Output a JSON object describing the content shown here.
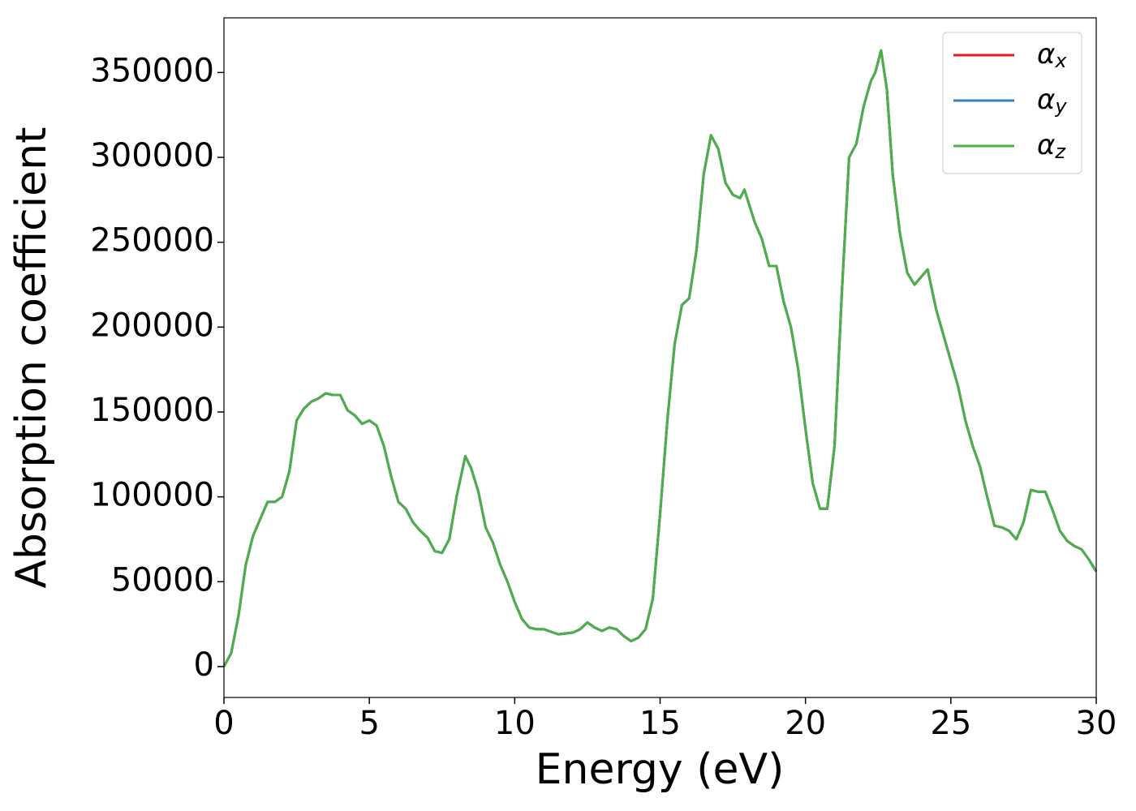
{
  "chart_data": {
    "type": "line",
    "xlabel": "Energy (eV)",
    "ylabel": "Absorption coefficient",
    "x": [
      0,
      0.25,
      0.5,
      0.75,
      1.0,
      1.25,
      1.5,
      1.75,
      2.0,
      2.25,
      2.5,
      2.75,
      3.0,
      3.25,
      3.5,
      3.75,
      4.0,
      4.25,
      4.5,
      4.75,
      5.0,
      5.25,
      5.5,
      5.75,
      6.0,
      6.25,
      6.5,
      6.75,
      7.0,
      7.25,
      7.5,
      7.75,
      8.0,
      8.3,
      8.5,
      8.75,
      9.0,
      9.25,
      9.5,
      9.75,
      10.0,
      10.25,
      10.5,
      10.75,
      11.0,
      11.5,
      12.0,
      12.25,
      12.5,
      12.75,
      13.0,
      13.25,
      13.5,
      13.75,
      14.0,
      14.25,
      14.5,
      14.75,
      15.0,
      15.25,
      15.5,
      15.75,
      16.0,
      16.25,
      16.5,
      16.75,
      17.0,
      17.25,
      17.5,
      17.75,
      17.9,
      18.25,
      18.5,
      18.75,
      19.0,
      19.25,
      19.5,
      19.75,
      20.0,
      20.25,
      20.5,
      20.75,
      21.0,
      21.25,
      21.5,
      21.75,
      22.0,
      22.25,
      22.4,
      22.6,
      22.8,
      23.0,
      23.25,
      23.5,
      23.75,
      24.0,
      24.2,
      24.5,
      24.75,
      25.0,
      25.25,
      25.5,
      25.75,
      26.0,
      26.25,
      26.5,
      26.75,
      27.0,
      27.25,
      27.5,
      27.75,
      28.0,
      28.25,
      28.5,
      28.75,
      29.0,
      29.25,
      29.5,
      29.75,
      30.0
    ],
    "series": [
      {
        "name": "αx",
        "color": "#e41a1c",
        "values": [
          0,
          8000,
          30000,
          60000,
          77000,
          87000,
          97000,
          97000,
          100000,
          115000,
          145000,
          152000,
          156000,
          158000,
          161000,
          160000,
          160000,
          151000,
          148000,
          143000,
          145000,
          142000,
          130000,
          112000,
          97000,
          93000,
          85000,
          80000,
          76000,
          68000,
          67000,
          75000,
          100000,
          124000,
          117000,
          103000,
          82000,
          73000,
          60000,
          50000,
          38000,
          28000,
          23000,
          22000,
          22000,
          19000,
          20000,
          22000,
          26000,
          23000,
          21000,
          23000,
          22000,
          18000,
          15000,
          17000,
          22000,
          40000,
          90000,
          145000,
          190000,
          213000,
          217000,
          245000,
          290000,
          313000,
          305000,
          285000,
          278000,
          276000,
          281000,
          262000,
          252000,
          236000,
          236000,
          215000,
          200000,
          175000,
          140000,
          108000,
          93000,
          93000,
          130000,
          220000,
          300000,
          308000,
          330000,
          345000,
          350000,
          363000,
          340000,
          290000,
          255000,
          232000,
          225000,
          230000,
          234000,
          210000,
          195000,
          180000,
          165000,
          145000,
          130000,
          118000,
          100000,
          83000,
          82000,
          80000,
          75000,
          85000,
          104000,
          103000,
          103000,
          92000,
          80000,
          74000,
          71000,
          69000,
          63000,
          56000
        ]
      },
      {
        "name": "αy",
        "color": "#377eb8",
        "values": [
          0,
          8000,
          30000,
          60000,
          77000,
          87000,
          97000,
          97000,
          100000,
          115000,
          145000,
          152000,
          156000,
          158000,
          161000,
          160000,
          160000,
          151000,
          148000,
          143000,
          145000,
          142000,
          130000,
          112000,
          97000,
          93000,
          85000,
          80000,
          76000,
          68000,
          67000,
          75000,
          100000,
          124000,
          117000,
          103000,
          82000,
          73000,
          60000,
          50000,
          38000,
          28000,
          23000,
          22000,
          22000,
          19000,
          20000,
          22000,
          26000,
          23000,
          21000,
          23000,
          22000,
          18000,
          15000,
          17000,
          22000,
          40000,
          90000,
          145000,
          190000,
          213000,
          217000,
          245000,
          290000,
          313000,
          305000,
          285000,
          278000,
          276000,
          281000,
          262000,
          252000,
          236000,
          236000,
          215000,
          200000,
          175000,
          140000,
          108000,
          93000,
          93000,
          130000,
          220000,
          300000,
          308000,
          330000,
          345000,
          350000,
          363000,
          340000,
          290000,
          255000,
          232000,
          225000,
          230000,
          234000,
          210000,
          195000,
          180000,
          165000,
          145000,
          130000,
          118000,
          100000,
          83000,
          82000,
          80000,
          75000,
          85000,
          104000,
          103000,
          103000,
          92000,
          80000,
          74000,
          71000,
          69000,
          63000,
          56000
        ]
      },
      {
        "name": "αz",
        "color": "#4daf4a",
        "values": [
          0,
          8000,
          30000,
          60000,
          77000,
          87000,
          97000,
          97000,
          100000,
          115000,
          145000,
          152000,
          156000,
          158000,
          161000,
          160000,
          160000,
          151000,
          148000,
          143000,
          145000,
          142000,
          130000,
          112000,
          97000,
          93000,
          85000,
          80000,
          76000,
          68000,
          67000,
          75000,
          100000,
          124000,
          117000,
          103000,
          82000,
          73000,
          60000,
          50000,
          38000,
          28000,
          23000,
          22000,
          22000,
          19000,
          20000,
          22000,
          26000,
          23000,
          21000,
          23000,
          22000,
          18000,
          15000,
          17000,
          22000,
          40000,
          90000,
          145000,
          190000,
          213000,
          217000,
          245000,
          290000,
          313000,
          305000,
          285000,
          278000,
          276000,
          281000,
          262000,
          252000,
          236000,
          236000,
          215000,
          200000,
          175000,
          140000,
          108000,
          93000,
          93000,
          130000,
          220000,
          300000,
          308000,
          330000,
          345000,
          350000,
          363000,
          340000,
          290000,
          255000,
          232000,
          225000,
          230000,
          234000,
          210000,
          195000,
          180000,
          165000,
          145000,
          130000,
          118000,
          100000,
          83000,
          82000,
          80000,
          75000,
          85000,
          104000,
          103000,
          103000,
          92000,
          80000,
          74000,
          71000,
          69000,
          63000,
          56000
        ]
      }
    ],
    "xlim": [
      0,
      30
    ],
    "xticks": [
      0,
      5,
      10,
      15,
      20,
      25,
      30
    ],
    "ylim": [
      -18200,
      382200
    ],
    "yticks": [
      0,
      50000,
      100000,
      150000,
      200000,
      250000,
      300000,
      350000
    ],
    "legend": "upper right",
    "grid": false
  }
}
